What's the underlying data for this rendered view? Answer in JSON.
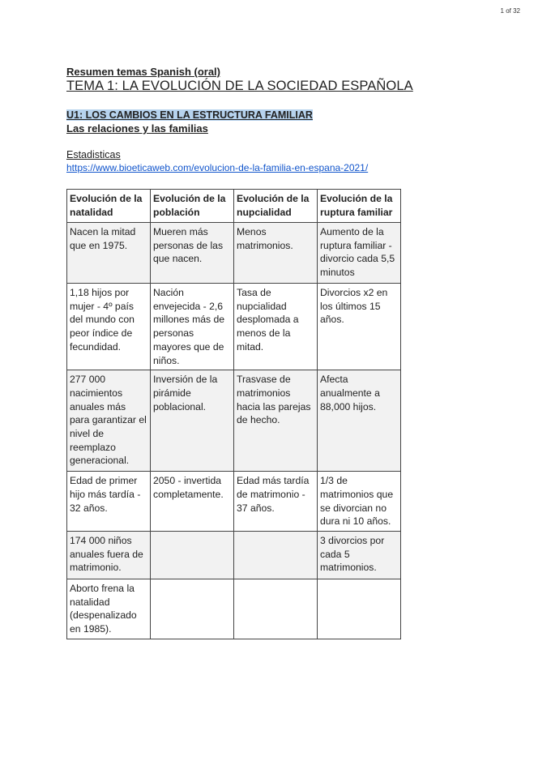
{
  "page_indicator": "1 of 32",
  "subtitle": "Resumen temas Spanish (oral)",
  "title": "TEMA 1: LA EVOLUCIÓN DE LA SOCIEDAD ESPAÑOLA",
  "unit_heading": "U1: LOS CAMBIOS EN LA ESTRUCTURA FAMILIAR",
  "section_heading": "Las relaciones y las familias",
  "stats_label": "Estadisticas",
  "stats_link": "https://www.bioeticaweb.com/evolucion-de-la-familia-en-espana-2021/",
  "table": {
    "headers": [
      "Evolución de la natalidad",
      "Evolución de la población",
      "Evolución de la nupcialidad",
      "Evolución de la ruptura familiar"
    ],
    "rows": [
      [
        "Nacen la mitad que en 1975.",
        "Mueren más personas de las que nacen.",
        "Menos matrimonios.",
        "Aumento de la ruptura familiar - divorcio cada 5,5 minutos"
      ],
      [
        "1,18 hijos por mujer - 4º país del mundo con peor índice de fecundidad.",
        "Nación envejecida - 2,6 millones más de personas mayores que de niños.",
        "Tasa de nupcialidad desplomada a menos de la mitad.",
        "Divorcios x2 en los últimos 15 años."
      ],
      [
        "277 000 nacimientos anuales más para garantizar el nivel de reemplazo generacional.",
        "Inversión de la pirámide poblacional.",
        "Trasvase de matrimonios hacia las parejas de hecho.",
        "Afecta anualmente a 88,000 hijos."
      ],
      [
        "Edad de primer hijo más tardía - 32 años.",
        "2050 - invertida completamente.",
        "Edad más tardía de matrimonio - 37 años.",
        "1/3 de matrimonios que se divorcian no dura ni 10 años."
      ],
      [
        "174 000 niños anuales fuera de matrimonio.",
        "",
        "",
        "3 divorcios por cada 5 matrimonios."
      ],
      [
        "Aborto frena la natalidad (despenalizado en 1985).",
        "",
        "",
        ""
      ]
    ]
  }
}
